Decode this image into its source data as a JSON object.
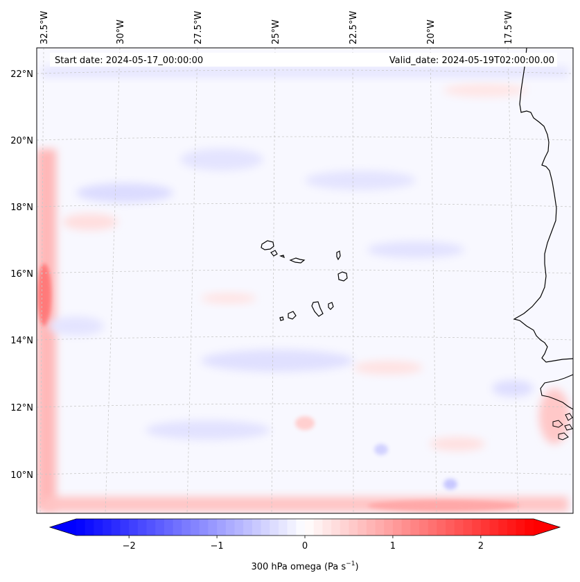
{
  "header": {
    "start_date": "Start date: 2024-05-17_00:00:00",
    "valid_date": "Valid_date: 2024-05-19T02:00:00.00"
  },
  "map": {
    "variable": "300 hPa omega",
    "lon_labels": [
      "32.5°W",
      "30°W",
      "27.5°W",
      "25°W",
      "22.5°W",
      "20°W",
      "17.5°W"
    ],
    "lat_labels": [
      "22°N",
      "20°N",
      "18°N",
      "16°N",
      "14°N",
      "12°N",
      "10°N"
    ],
    "gridlines": true,
    "coastline_color": "#000000",
    "islands": [
      "Santo Antão",
      "São Vicente",
      "Santa Luzia",
      "São Nicolau",
      "Sal",
      "Boa Vista",
      "Maio",
      "Santiago",
      "Fogo",
      "Brava"
    ]
  },
  "colorbar": {
    "label_prefix": "300 hPa omega (Pa s",
    "label_exponent": "−1",
    "label_suffix": ")",
    "ticks": [
      "−2",
      "−1",
      "0",
      "1",
      "2"
    ],
    "tick_values": [
      -2,
      -1,
      0,
      1,
      2
    ],
    "range": [
      -2.6,
      2.6
    ],
    "colormap": "bwr",
    "extend": "both",
    "color_min": "#0000ff",
    "color_mid": "#ffffff",
    "color_max": "#ff0000"
  }
}
